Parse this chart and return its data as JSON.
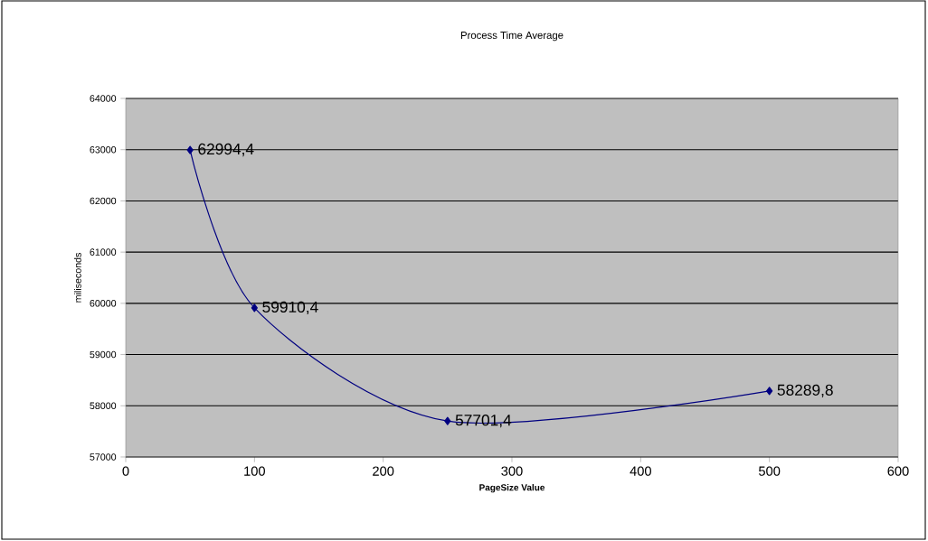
{
  "chart_data": {
    "type": "line",
    "title": "Process Time Average",
    "xlabel": "PageSize Value",
    "ylabel": "miliseconds",
    "x": [
      50,
      100,
      250,
      500
    ],
    "series": [
      {
        "color": "#000080",
        "values": [
          62994.4,
          59910.4,
          57701.4,
          58289.8
        ],
        "value_labels": [
          "62994,4",
          "59910,4",
          "57701,4",
          "58289,8"
        ]
      }
    ],
    "xlim": [
      0,
      600
    ],
    "xticks": [
      0,
      100,
      200,
      300,
      400,
      500,
      600
    ],
    "ylim": [
      57000,
      64000
    ],
    "yticks": [
      57000,
      58000,
      59000,
      60000,
      61000,
      62000,
      63000,
      64000
    ],
    "grid": "y",
    "marker": "diamond",
    "line_style": "solid"
  }
}
